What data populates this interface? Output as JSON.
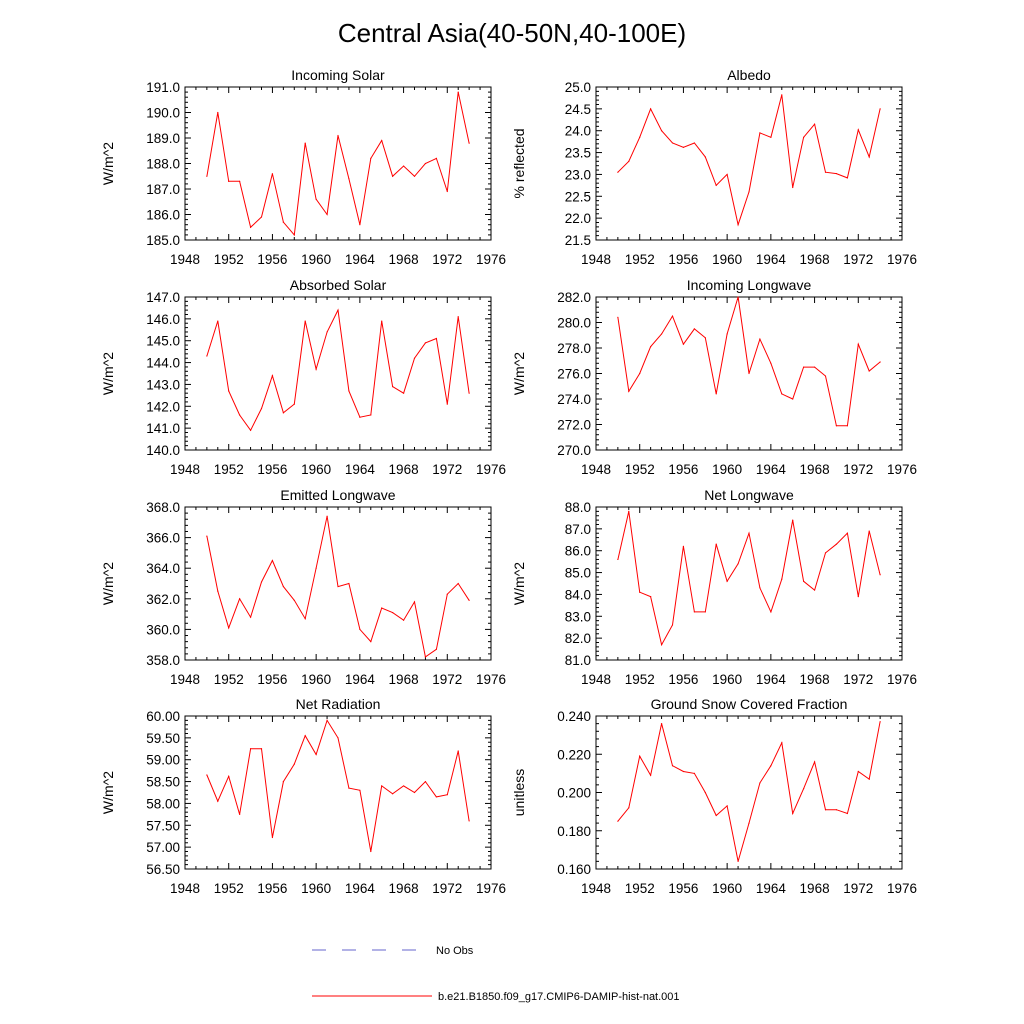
{
  "figure": {
    "title": "Central Asia(40-50N,40-100E)",
    "series_color": "#ff0000",
    "obs_color": "#6666cc"
  },
  "legend": {
    "obs_label": "No Obs",
    "model_label": "b.e21.B1850.f09_g17.CMIP6-DAMIP-hist-nat.001"
  },
  "chart_data": [
    {
      "type": "line",
      "title": "Incoming Solar",
      "ylabel": "W/m^2",
      "xlim": [
        1948,
        1976
      ],
      "xticks": [
        "1948",
        "1952",
        "1956",
        "1960",
        "1964",
        "1968",
        "1972",
        "1976"
      ],
      "ylim": [
        185.0,
        191.0
      ],
      "yticks": [
        "185.0",
        "186.0",
        "187.0",
        "188.0",
        "189.0",
        "190.0",
        "191.0"
      ],
      "x": [
        1950,
        1951,
        1952,
        1953,
        1954,
        1955,
        1956,
        1957,
        1958,
        1959,
        1960,
        1961,
        1962,
        1963,
        1964,
        1965,
        1966,
        1967,
        1968,
        1969,
        1970,
        1971,
        1972,
        1973,
        1974
      ],
      "series": [
        {
          "name": "b.e21.B1850.f09_g17.CMIP6-DAMIP-hist-nat.001",
          "values": [
            187.5,
            190.0,
            187.3,
            187.3,
            185.5,
            185.9,
            187.6,
            185.7,
            185.2,
            188.8,
            186.6,
            186.0,
            189.1,
            187.4,
            185.6,
            188.2,
            188.9,
            187.5,
            187.9,
            187.5,
            188.0,
            188.2,
            186.9,
            190.8,
            188.8
          ]
        }
      ]
    },
    {
      "type": "line",
      "title": "Albedo",
      "ylabel": "% reflected",
      "xlim": [
        1948,
        1976
      ],
      "xticks": [
        "1948",
        "1952",
        "1956",
        "1960",
        "1964",
        "1968",
        "1972",
        "1976"
      ],
      "ylim": [
        21.5,
        25.0
      ],
      "yticks": [
        "21.5",
        "22.0",
        "22.5",
        "23.0",
        "23.5",
        "24.0",
        "24.5",
        "25.0"
      ],
      "x": [
        1950,
        1951,
        1952,
        1953,
        1954,
        1955,
        1956,
        1957,
        1958,
        1959,
        1960,
        1961,
        1962,
        1963,
        1964,
        1965,
        1966,
        1967,
        1968,
        1969,
        1970,
        1971,
        1972,
        1973,
        1974
      ],
      "series": [
        {
          "name": "b.e21.B1850.f09_g17.CMIP6-DAMIP-hist-nat.001",
          "values": [
            23.05,
            23.3,
            23.85,
            24.5,
            24.0,
            23.72,
            23.62,
            23.72,
            23.4,
            22.75,
            23.0,
            21.85,
            22.6,
            23.95,
            23.85,
            24.82,
            22.7,
            23.85,
            24.15,
            23.05,
            23.02,
            22.92,
            24.02,
            23.4,
            24.5
          ]
        }
      ]
    },
    {
      "type": "line",
      "title": "Absorbed Solar",
      "ylabel": "W/m^2",
      "xlim": [
        1948,
        1976
      ],
      "xticks": [
        "1948",
        "1952",
        "1956",
        "1960",
        "1964",
        "1968",
        "1972",
        "1976"
      ],
      "ylim": [
        140.0,
        147.0
      ],
      "yticks": [
        "140.0",
        "141.0",
        "142.0",
        "143.0",
        "144.0",
        "145.0",
        "146.0",
        "147.0"
      ],
      "x": [
        1950,
        1951,
        1952,
        1953,
        1954,
        1955,
        1956,
        1957,
        1958,
        1959,
        1960,
        1961,
        1962,
        1963,
        1964,
        1965,
        1966,
        1967,
        1968,
        1969,
        1970,
        1971,
        1972,
        1973,
        1974
      ],
      "series": [
        {
          "name": "b.e21.B1850.f09_g17.CMIP6-DAMIP-hist-nat.001",
          "values": [
            144.3,
            145.9,
            142.7,
            141.6,
            140.9,
            141.9,
            143.4,
            141.7,
            142.1,
            145.9,
            143.7,
            145.4,
            146.4,
            142.7,
            141.5,
            141.6,
            145.9,
            142.9,
            142.6,
            144.2,
            144.9,
            145.1,
            142.1,
            146.1,
            142.6
          ]
        }
      ]
    },
    {
      "type": "line",
      "title": "Incoming Longwave",
      "ylabel": "W/m^2",
      "xlim": [
        1948,
        1976
      ],
      "xticks": [
        "1948",
        "1952",
        "1956",
        "1960",
        "1964",
        "1968",
        "1972",
        "1976"
      ],
      "ylim": [
        270.0,
        282.0
      ],
      "yticks": [
        "270.0",
        "272.0",
        "274.0",
        "276.0",
        "278.0",
        "280.0",
        "282.0"
      ],
      "x": [
        1950,
        1951,
        1952,
        1953,
        1954,
        1955,
        1956,
        1957,
        1958,
        1959,
        1960,
        1961,
        1962,
        1963,
        1964,
        1965,
        1966,
        1967,
        1968,
        1969,
        1970,
        1971,
        1972,
        1973,
        1974
      ],
      "series": [
        {
          "name": "b.e21.B1850.f09_g17.CMIP6-DAMIP-hist-nat.001",
          "values": [
            280.4,
            274.6,
            276.0,
            278.1,
            279.1,
            280.5,
            278.3,
            279.5,
            278.8,
            274.4,
            279.1,
            282.0,
            276.0,
            278.7,
            276.8,
            274.4,
            274.0,
            276.5,
            276.5,
            275.8,
            271.9,
            271.9,
            278.3,
            276.2,
            276.9
          ]
        }
      ]
    },
    {
      "type": "line",
      "title": "Emitted Longwave",
      "ylabel": "W/m^2",
      "xlim": [
        1948,
        1976
      ],
      "xticks": [
        "1948",
        "1952",
        "1956",
        "1960",
        "1964",
        "1968",
        "1972",
        "1976"
      ],
      "ylim": [
        358.0,
        368.0
      ],
      "yticks": [
        "358.0",
        "360.0",
        "362.0",
        "364.0",
        "366.0",
        "368.0"
      ],
      "x": [
        1950,
        1951,
        1952,
        1953,
        1954,
        1955,
        1956,
        1957,
        1958,
        1959,
        1960,
        1961,
        1962,
        1963,
        1964,
        1965,
        1966,
        1967,
        1968,
        1969,
        1970,
        1971,
        1972,
        1973,
        1974
      ],
      "series": [
        {
          "name": "b.e21.B1850.f09_g17.CMIP6-DAMIP-hist-nat.001",
          "values": [
            366.1,
            362.5,
            360.1,
            362.0,
            360.8,
            363.1,
            364.5,
            362.8,
            361.9,
            360.7,
            364.0,
            367.4,
            362.8,
            363.0,
            360.0,
            359.2,
            361.4,
            361.1,
            360.6,
            361.8,
            358.2,
            358.7,
            362.3,
            363.0,
            361.9
          ]
        }
      ]
    },
    {
      "type": "line",
      "title": "Net Longwave",
      "ylabel": "W/m^2",
      "xlim": [
        1948,
        1976
      ],
      "xticks": [
        "1948",
        "1952",
        "1956",
        "1960",
        "1964",
        "1968",
        "1972",
        "1976"
      ],
      "ylim": [
        81.0,
        88.0
      ],
      "yticks": [
        "81.0",
        "82.0",
        "83.0",
        "84.0",
        "85.0",
        "86.0",
        "87.0",
        "88.0"
      ],
      "x": [
        1950,
        1951,
        1952,
        1953,
        1954,
        1955,
        1956,
        1957,
        1958,
        1959,
        1960,
        1961,
        1962,
        1963,
        1964,
        1965,
        1966,
        1967,
        1968,
        1969,
        1970,
        1971,
        1972,
        1973,
        1974
      ],
      "series": [
        {
          "name": "b.e21.B1850.f09_g17.CMIP6-DAMIP-hist-nat.001",
          "values": [
            85.6,
            87.8,
            84.1,
            83.9,
            81.7,
            82.6,
            86.2,
            83.2,
            83.2,
            86.3,
            84.6,
            85.4,
            86.8,
            84.3,
            83.2,
            84.7,
            87.4,
            84.6,
            84.2,
            85.9,
            86.3,
            86.8,
            83.9,
            86.9,
            84.9
          ]
        }
      ]
    },
    {
      "type": "line",
      "title": "Net Radiation",
      "ylabel": "W/m^2",
      "xlim": [
        1948,
        1976
      ],
      "xticks": [
        "1948",
        "1952",
        "1956",
        "1960",
        "1964",
        "1968",
        "1972",
        "1976"
      ],
      "ylim": [
        56.5,
        60.0
      ],
      "yticks": [
        "56.50",
        "57.00",
        "57.50",
        "58.00",
        "58.50",
        "59.00",
        "59.50",
        "60.00"
      ],
      "x": [
        1950,
        1951,
        1952,
        1953,
        1954,
        1955,
        1956,
        1957,
        1958,
        1959,
        1960,
        1961,
        1962,
        1963,
        1964,
        1965,
        1966,
        1967,
        1968,
        1969,
        1970,
        1971,
        1972,
        1973,
        1974
      ],
      "series": [
        {
          "name": "b.e21.B1850.f09_g17.CMIP6-DAMIP-hist-nat.001",
          "values": [
            58.65,
            58.05,
            58.62,
            57.75,
            59.25,
            59.25,
            57.22,
            58.5,
            58.9,
            59.55,
            59.12,
            59.9,
            59.5,
            58.35,
            58.3,
            56.9,
            58.4,
            58.22,
            58.4,
            58.25,
            58.5,
            58.15,
            58.2,
            59.2,
            57.6
          ]
        }
      ]
    },
    {
      "type": "line",
      "title": "Ground Snow Covered Fraction",
      "ylabel": "unitless",
      "xlim": [
        1948,
        1976
      ],
      "xticks": [
        "1948",
        "1952",
        "1956",
        "1960",
        "1964",
        "1968",
        "1972",
        "1976"
      ],
      "ylim": [
        0.16,
        0.24
      ],
      "yticks": [
        "0.160",
        "0.180",
        "0.200",
        "0.220",
        "0.240"
      ],
      "x": [
        1950,
        1951,
        1952,
        1953,
        1954,
        1955,
        1956,
        1957,
        1958,
        1959,
        1960,
        1961,
        1962,
        1963,
        1964,
        1965,
        1966,
        1967,
        1968,
        1969,
        1970,
        1971,
        1972,
        1973,
        1974
      ],
      "series": [
        {
          "name": "b.e21.B1850.f09_g17.CMIP6-DAMIP-hist-nat.001",
          "values": [
            0.185,
            0.192,
            0.219,
            0.209,
            0.236,
            0.214,
            0.211,
            0.21,
            0.2,
            0.188,
            0.193,
            0.164,
            0.184,
            0.205,
            0.214,
            0.226,
            0.189,
            0.202,
            0.216,
            0.191,
            0.191,
            0.189,
            0.211,
            0.207,
            0.237
          ]
        }
      ]
    }
  ]
}
